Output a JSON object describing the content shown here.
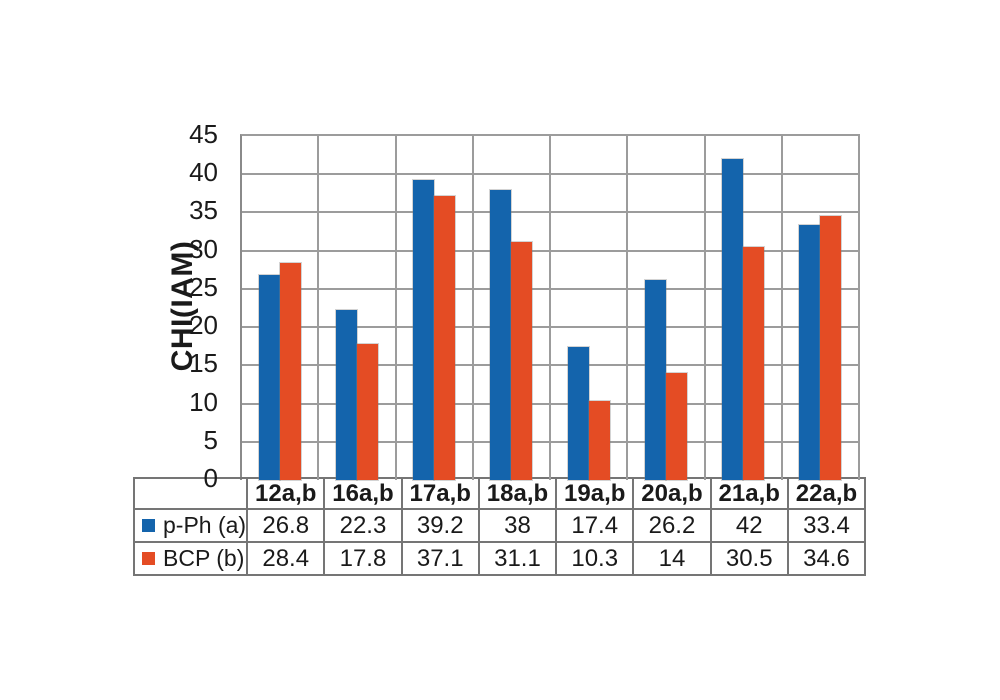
{
  "chart_data": {
    "type": "bar",
    "title": "",
    "xlabel": "",
    "ylabel": "CHI(IAM)",
    "categories": [
      "12a,b",
      "16a,b",
      "17a,b",
      "18a,b",
      "19a,b",
      "20a,b",
      "21a,b",
      "22a,b"
    ],
    "series": [
      {
        "name": "p-Ph (a)",
        "color": "#1464AC",
        "values": [
          26.8,
          22.3,
          39.2,
          38,
          17.4,
          26.2,
          42,
          33.4
        ]
      },
      {
        "name": "BCP (b)",
        "color": "#E44C24",
        "values": [
          28.4,
          17.8,
          37.1,
          31.1,
          10.3,
          14,
          30.5,
          34.6
        ]
      }
    ],
    "ylim": [
      0,
      45
    ],
    "yticks": [
      0,
      5,
      10,
      15,
      20,
      25,
      30,
      35,
      40,
      45
    ],
    "grid": {
      "horizontal": true,
      "vertical_category_separators": true
    },
    "legend_position": "data-table-left-keys"
  },
  "colors": {
    "series_blue": "#1464AC",
    "series_red": "#E44C24",
    "gridline": "#9C9C9C",
    "axis": "#8A8A8A",
    "table_border": "#757575",
    "text": "#1A1A1A",
    "background": "#FFFFFF"
  }
}
